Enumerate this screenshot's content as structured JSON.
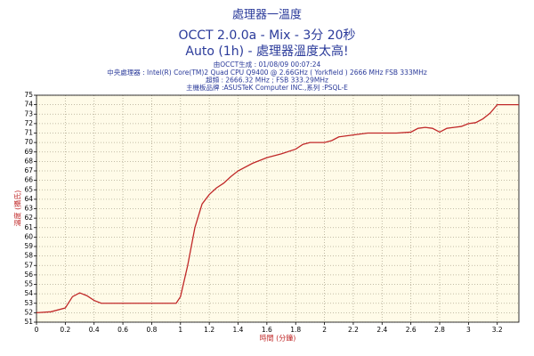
{
  "chart_data": {
    "type": "line",
    "title": "處理器一溫度",
    "subtitles": [
      "OCCT 2.0.0a - Mix - 3分 20秒",
      "Auto (1h) - 處理器溫度太高!"
    ],
    "info": [
      "由OCCT生成 : 01/08/09 00:07:24",
      "中央處理器 : Intel(R) Core(TM)2 Quad CPU Q9400 @ 2.66GHz ( Yorkfield ) 2666 MHz FSB 333MHz",
      "超頻 : 2666.32 MHz ; FSB 333.29MHz",
      "主機板品牌 :ASUSTeK Computer INC.,系列 :PSQL-E"
    ],
    "x_label": "時間 (分鐘)",
    "y_label": "溫度 (攝氏)",
    "x": [
      0,
      0.1,
      0.2,
      0.25,
      0.3,
      0.35,
      0.4,
      0.45,
      0.6,
      0.8,
      0.97,
      1.0,
      1.05,
      1.1,
      1.15,
      1.2,
      1.25,
      1.3,
      1.35,
      1.4,
      1.5,
      1.6,
      1.7,
      1.8,
      1.85,
      1.9,
      2.0,
      2.05,
      2.1,
      2.2,
      2.3,
      2.4,
      2.5,
      2.6,
      2.65,
      2.7,
      2.75,
      2.8,
      2.85,
      2.9,
      2.95,
      3.0,
      3.05,
      3.1,
      3.15,
      3.2,
      3.35
    ],
    "series": [
      {
        "name": "溫度",
        "color": "#c02828",
        "values": [
          52,
          52.1,
          52.5,
          53.7,
          54.1,
          53.8,
          53.3,
          53,
          53,
          53,
          53,
          53.7,
          57,
          61,
          63.5,
          64.5,
          65.2,
          65.7,
          66.4,
          67,
          67.8,
          68.4,
          68.8,
          69.3,
          69.8,
          70,
          70,
          70.2,
          70.6,
          70.8,
          71,
          71,
          71,
          71.1,
          71.5,
          71.6,
          71.5,
          71.1,
          71.5,
          71.6,
          71.7,
          72,
          72.1,
          72.5,
          73.1,
          74,
          74
        ]
      }
    ],
    "xlim": [
      0,
      3.35
    ],
    "ylim": [
      51,
      75
    ],
    "xticks": [
      0,
      0.2,
      0.4,
      0.6,
      0.8,
      1,
      1.2,
      1.4,
      1.6,
      1.8,
      2,
      2.2,
      2.4,
      2.6,
      2.8,
      3,
      3.2
    ],
    "yticks": [
      51,
      52,
      53,
      54,
      55,
      56,
      57,
      58,
      59,
      60,
      61,
      62,
      63,
      64,
      65,
      66,
      67,
      68,
      69,
      70,
      71,
      72,
      73,
      74,
      75
    ],
    "grid": true
  }
}
